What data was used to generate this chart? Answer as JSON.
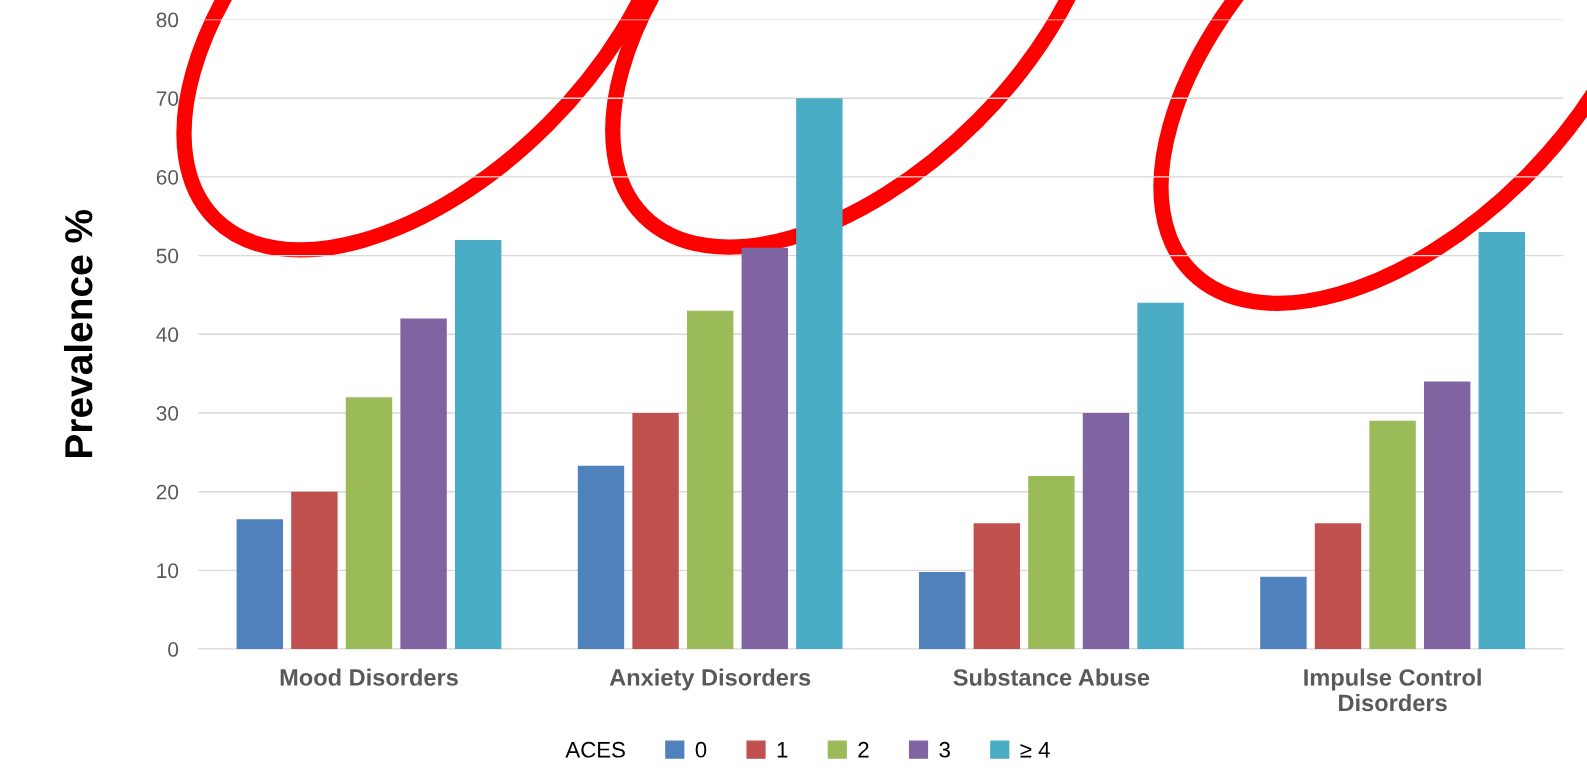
{
  "chart_data": {
    "type": "bar",
    "ylabel": "Prevalence %",
    "legend_title": "ACES",
    "categories": [
      "Mood Disorders",
      "Anxiety Disorders",
      "Substance Abuse",
      "Impulse Control\nDisorders"
    ],
    "series": [
      {
        "name": "0",
        "color": "#4f81bd",
        "values": [
          16.5,
          23.3,
          9.8,
          9.2
        ]
      },
      {
        "name": "1",
        "color": "#c0504d",
        "values": [
          20,
          30,
          16,
          16
        ]
      },
      {
        "name": "2",
        "color": "#9bbb59",
        "values": [
          32,
          43,
          22,
          29
        ]
      },
      {
        "name": "3",
        "color": "#8064a2",
        "values": [
          42,
          51,
          30,
          34
        ]
      },
      {
        "name": "≥ 4",
        "color": "#4bacc6",
        "values": [
          52,
          70,
          44,
          53
        ]
      }
    ],
    "ylim": [
      0,
      80
    ],
    "yticks": [
      0,
      10,
      20,
      30,
      40,
      50,
      60,
      70,
      80
    ],
    "grid": "y",
    "legend": "bottom"
  }
}
